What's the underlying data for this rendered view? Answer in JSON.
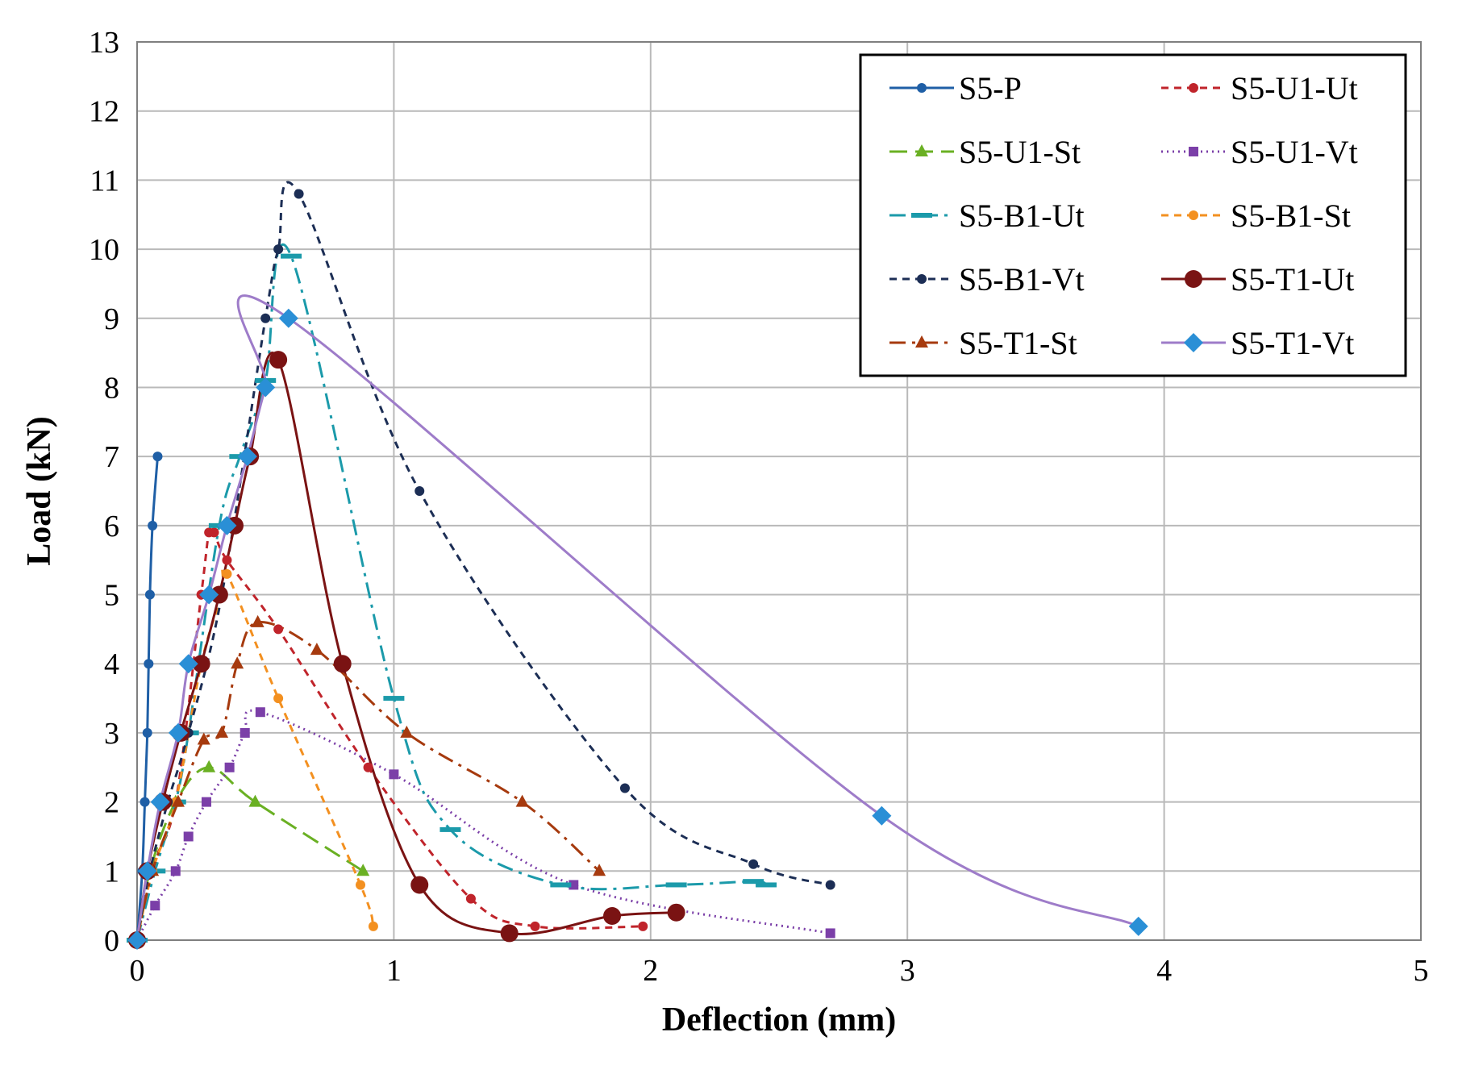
{
  "chart_data": {
    "type": "line",
    "title": "",
    "xlabel": "Deflection (mm)",
    "ylabel": "Load (kN)",
    "xlim": [
      0,
      5
    ],
    "ylim": [
      0,
      13
    ],
    "x_ticks": [
      "0",
      "1",
      "2",
      "3",
      "4",
      "5"
    ],
    "y_ticks": [
      "0",
      "1",
      "2",
      "3",
      "4",
      "5",
      "6",
      "7",
      "8",
      "9",
      "10",
      "11",
      "12",
      "13"
    ],
    "grid": true,
    "legend_position": "top-right",
    "series": [
      {
        "name": "S5-P",
        "color": "#1f5fa6",
        "dash": "solid",
        "marker": "circle",
        "x": [
          0,
          0.02,
          0.03,
          0.04,
          0.045,
          0.05,
          0.06,
          0.08
        ],
        "y": [
          0,
          1,
          2,
          3,
          4,
          5,
          6,
          7
        ]
      },
      {
        "name": "S5-U1-Ut",
        "color": "#c0242b",
        "dash": "dash",
        "marker": "circle",
        "x": [
          0,
          0.05,
          0.15,
          0.25,
          0.28,
          0.3,
          0.35,
          0.55,
          0.9,
          1.3,
          1.55,
          1.97
        ],
        "y": [
          0,
          1,
          2,
          5,
          5.9,
          5.9,
          5.5,
          4.5,
          2.5,
          0.6,
          0.2,
          0.2
        ]
      },
      {
        "name": "S5-U1-St",
        "color": "#6ab023",
        "dash": "longdash",
        "marker": "triangle",
        "x": [
          0,
          0.05,
          0.15,
          0.28,
          0.46,
          0.88
        ],
        "y": [
          0,
          1,
          2,
          2.5,
          2,
          1
        ]
      },
      {
        "name": "S5-U1-Vt",
        "color": "#7b3fa8",
        "dash": "dot",
        "marker": "square",
        "x": [
          0,
          0.07,
          0.15,
          0.2,
          0.27,
          0.36,
          0.42,
          0.48,
          1.0,
          1.7,
          2.7
        ],
        "y": [
          0,
          0.5,
          1,
          1.5,
          2,
          2.5,
          3,
          3.3,
          2.4,
          0.8,
          0.1
        ]
      },
      {
        "name": "S5-B1-Ut",
        "color": "#1b9aaa",
        "dash": "dashdot",
        "marker": "dash",
        "x": [
          0,
          0.07,
          0.15,
          0.2,
          0.32,
          0.4,
          0.5,
          0.6,
          1.0,
          1.22,
          1.65,
          2.1,
          2.4,
          2.45
        ],
        "y": [
          0,
          1,
          2,
          3,
          6,
          7,
          8.1,
          9.9,
          3.5,
          1.6,
          0.8,
          0.8,
          0.85,
          0.8
        ]
      },
      {
        "name": "S5-B1-St",
        "color": "#f39020",
        "dash": "dash",
        "marker": "circle",
        "x": [
          0,
          0.06,
          0.15,
          0.25,
          0.33,
          0.35,
          0.55,
          0.87,
          0.92
        ],
        "y": [
          0,
          1,
          2,
          4,
          5,
          5.3,
          3.5,
          0.8,
          0.2
        ]
      },
      {
        "name": "S5-B1-Vt",
        "color": "#1c2e55",
        "dash": "dash",
        "marker": "circle",
        "x": [
          0,
          0.05,
          0.12,
          0.2,
          0.33,
          0.5,
          0.55,
          0.63,
          1.1,
          1.9,
          2.4,
          2.7
        ],
        "y": [
          0,
          1,
          2,
          3,
          5,
          9,
          10,
          10.8,
          6.5,
          2.2,
          1.1,
          0.8
        ]
      },
      {
        "name": "S5-T1-Ut",
        "color": "#7a1313",
        "dash": "solid",
        "marker": "bigcircle",
        "x": [
          0,
          0.04,
          0.1,
          0.17,
          0.25,
          0.32,
          0.38,
          0.44,
          0.55,
          0.8,
          1.1,
          1.45,
          1.85,
          2.1
        ],
        "y": [
          0,
          1,
          2,
          3,
          4,
          5,
          6,
          7,
          8.4,
          4.0,
          0.8,
          0.1,
          0.35,
          0.4
        ]
      },
      {
        "name": "S5-T1-St",
        "color": "#a63a0e",
        "dash": "dashdot",
        "marker": "triangle",
        "x": [
          0,
          0.06,
          0.16,
          0.26,
          0.33,
          0.39,
          0.47,
          0.7,
          1.05,
          1.5,
          1.8
        ],
        "y": [
          0,
          1,
          2,
          2.9,
          3,
          4,
          4.6,
          4.2,
          3,
          2,
          1
        ]
      },
      {
        "name": "S5-T1-Vt",
        "color": "#9e7cc9",
        "marker_color": "#2a8fd6",
        "dash": "solid",
        "marker": "diamond",
        "x": [
          0,
          0.04,
          0.09,
          0.16,
          0.2,
          0.28,
          0.35,
          0.43,
          0.5,
          0.59,
          2.9,
          3.9
        ],
        "y": [
          0,
          1,
          2,
          3,
          4,
          5,
          6,
          7,
          8,
          9,
          1.8,
          0.2
        ]
      }
    ]
  }
}
